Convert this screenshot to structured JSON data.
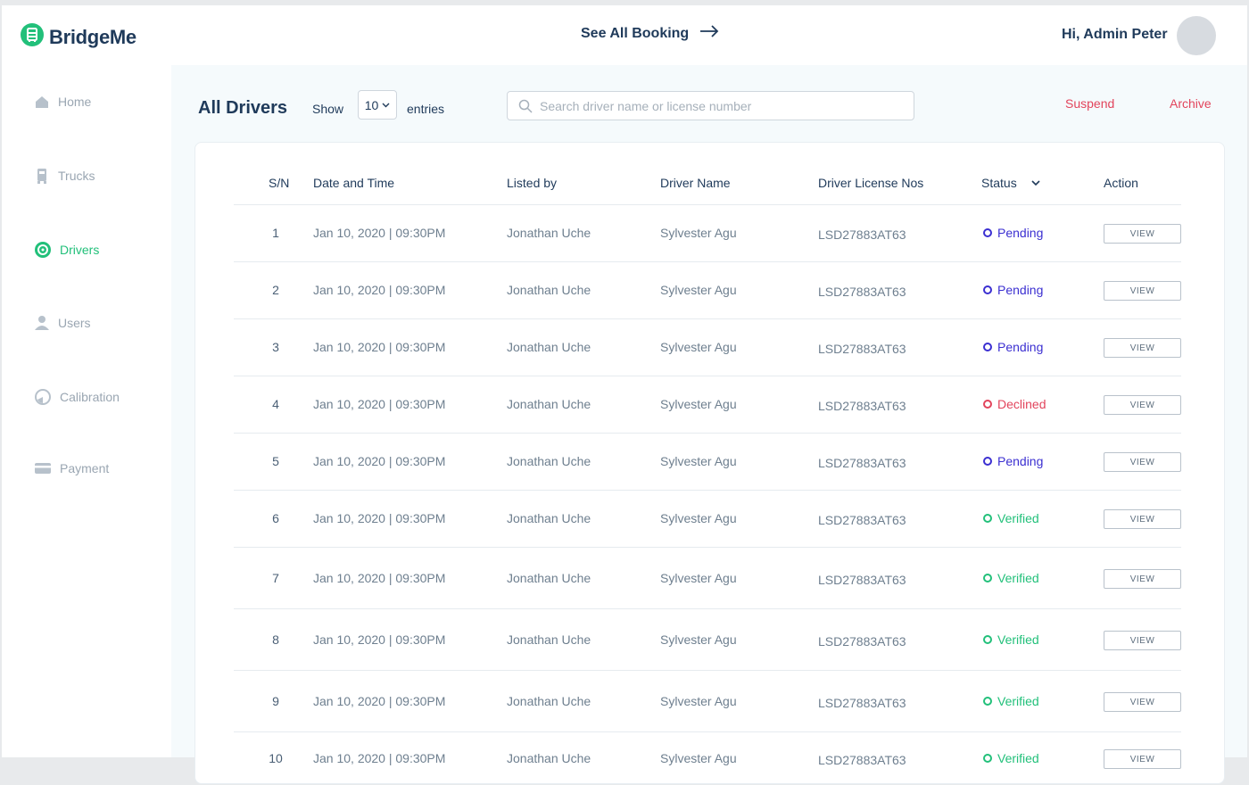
{
  "app": {
    "name": "BridgeMe",
    "accent": "#22c07a",
    "dark": "#1f3a5a",
    "danger": "#e2445c"
  },
  "header": {
    "see_all": "See All Booking",
    "greeting": "Hi, Admin Peter"
  },
  "sidebar": {
    "items": [
      {
        "label": "Home",
        "icon": "home-icon",
        "active": false
      },
      {
        "label": "Trucks",
        "icon": "truck-icon",
        "active": false
      },
      {
        "label": "Drivers",
        "icon": "drivers-icon",
        "active": true
      },
      {
        "label": "Users",
        "icon": "user-icon",
        "active": false
      },
      {
        "label": "Calibration",
        "icon": "calibration-icon",
        "active": false
      },
      {
        "label": "Payment",
        "icon": "card-icon",
        "active": false
      }
    ]
  },
  "toolbar": {
    "title": "All Drivers",
    "show": "Show",
    "entries_value": "10",
    "entries": "entries",
    "search_placeholder": "Search driver name or license number",
    "suspend": "Suspend",
    "archive": "Archive"
  },
  "table": {
    "headers": [
      "S/N",
      "Date and Time",
      "Listed by",
      "Driver Name",
      "Driver License Nos",
      "Status",
      "Action"
    ],
    "status_colors": {
      "Pending": "#3b2fd1",
      "Declined": "#e2445c",
      "Verified": "#22c07a"
    },
    "view_label": "VIEW",
    "rows": [
      {
        "sn": "1",
        "datetime": "Jan 10, 2020 | 09:30PM",
        "listed_by": "Jonathan Uche",
        "driver": "Sylvester Agu",
        "license": "LSD27883AT63",
        "status": "Pending"
      },
      {
        "sn": "2",
        "datetime": "Jan 10, 2020 | 09:30PM",
        "listed_by": "Jonathan Uche",
        "driver": "Sylvester Agu",
        "license": "LSD27883AT63",
        "status": "Pending"
      },
      {
        "sn": "3",
        "datetime": "Jan 10, 2020 | 09:30PM",
        "listed_by": "Jonathan Uche",
        "driver": "Sylvester Agu",
        "license": "LSD27883AT63",
        "status": "Pending"
      },
      {
        "sn": "4",
        "datetime": "Jan 10, 2020 | 09:30PM",
        "listed_by": "Jonathan Uche",
        "driver": "Sylvester Agu",
        "license": "LSD27883AT63",
        "status": "Declined"
      },
      {
        "sn": "5",
        "datetime": "Jan 10, 2020 | 09:30PM",
        "listed_by": "Jonathan Uche",
        "driver": "Sylvester Agu",
        "license": "LSD27883AT63",
        "status": "Pending"
      },
      {
        "sn": "6",
        "datetime": "Jan 10, 2020 | 09:30PM",
        "listed_by": "Jonathan Uche",
        "driver": "Sylvester Agu",
        "license": "LSD27883AT63",
        "status": "Verified"
      },
      {
        "sn": "7",
        "datetime": "Jan 10, 2020 | 09:30PM",
        "listed_by": "Jonathan Uche",
        "driver": "Sylvester Agu",
        "license": "LSD27883AT63",
        "status": "Verified"
      },
      {
        "sn": "8",
        "datetime": "Jan 10, 2020 | 09:30PM",
        "listed_by": "Jonathan Uche",
        "driver": "Sylvester Agu",
        "license": "LSD27883AT63",
        "status": "Verified"
      },
      {
        "sn": "9",
        "datetime": "Jan 10, 2020 | 09:30PM",
        "listed_by": "Jonathan Uche",
        "driver": "Sylvester Agu",
        "license": "LSD27883AT63",
        "status": "Verified"
      },
      {
        "sn": "10",
        "datetime": "Jan 10, 2020 | 09:30PM",
        "listed_by": "Jonathan Uche",
        "driver": "Sylvester Agu",
        "license": "LSD27883AT63",
        "status": "Verified"
      }
    ]
  }
}
